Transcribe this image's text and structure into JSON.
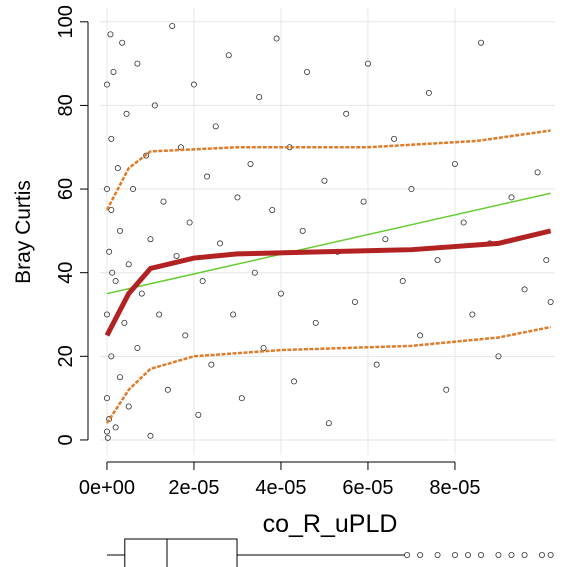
{
  "chart_data": {
    "type": "scatter",
    "xlabel": "co_R_uPLD",
    "ylabel": "Bray Curtis",
    "xlim": [
      -1.6e-06,
      0.000103
    ],
    "ylim": [
      -3.6,
      103.3
    ],
    "xticks": [
      {
        "value": 0,
        "label": "0e+00"
      },
      {
        "value": 2e-05,
        "label": "2e-05"
      },
      {
        "value": 4e-05,
        "label": "4e-05"
      },
      {
        "value": 6e-05,
        "label": "6e-05"
      },
      {
        "value": 8e-05,
        "label": "8e-05"
      }
    ],
    "yticks": [
      0,
      20,
      40,
      60,
      80,
      100
    ],
    "grid": true,
    "color": "#333333",
    "x": [
      0,
      0,
      0,
      0,
      0,
      5e-07,
      5e-07,
      1e-06,
      1e-06,
      1e-06,
      1.5e-06,
      2e-06,
      2e-06,
      2.5e-06,
      3e-06,
      3e-06,
      3.5e-06,
      4e-06,
      4.5e-06,
      5e-06,
      5e-06,
      6e-06,
      7e-06,
      7e-06,
      8e-06,
      9e-06,
      1e-05,
      1e-05,
      1.1e-05,
      1.2e-05,
      1.3e-05,
      1.4e-05,
      1.5e-05,
      1.6e-05,
      1.7e-05,
      1.8e-05,
      1.9e-05,
      2e-05,
      2.1e-05,
      2.2e-05,
      2.3e-05,
      2.4e-05,
      2.5e-05,
      2.6e-05,
      2.8e-05,
      2.9e-05,
      3e-05,
      3.1e-05,
      3.3e-05,
      3.4e-05,
      3.5e-05,
      3.6e-05,
      3.8e-05,
      3.9e-05,
      4e-05,
      4.2e-05,
      4.3e-05,
      4.5e-05,
      4.6e-05,
      4.8e-05,
      5e-05,
      5.1e-05,
      5.3e-05,
      5.5e-05,
      5.7e-05,
      5.9e-05,
      6e-05,
      6.2e-05,
      6.4e-05,
      6.6e-05,
      6.8e-05,
      7e-05,
      7.2e-05,
      7.4e-05,
      7.6e-05,
      7.8e-05,
      8e-05,
      8.2e-05,
      8.4e-05,
      8.6e-05,
      8.8e-05,
      9e-05,
      9.3e-05,
      9.6e-05,
      9.9e-05,
      0.000101,
      0.000102,
      2e-07,
      8e-07,
      1.2e-06
    ],
    "values": [
      2,
      10,
      30,
      60,
      85,
      5,
      45,
      72,
      20,
      55,
      88,
      3,
      38,
      65,
      15,
      50,
      95,
      28,
      78,
      8,
      42,
      60,
      22,
      90,
      35,
      68,
      1,
      48,
      80,
      30,
      57,
      12,
      99,
      44,
      70,
      25,
      52,
      85,
      6,
      38,
      63,
      18,
      75,
      47,
      92,
      30,
      58,
      10,
      66,
      40,
      82,
      22,
      55,
      96,
      35,
      70,
      14,
      50,
      88,
      28,
      62,
      4,
      45,
      78,
      33,
      57,
      90,
      18,
      48,
      72,
      38,
      60,
      25,
      83,
      43,
      12,
      66,
      52,
      30,
      95,
      47,
      20,
      58,
      36,
      64,
      43,
      33,
      0.5,
      97,
      40
    ],
    "lines": [
      {
        "color": "#e07b2a",
        "x": [
          0,
          5e-06,
          1e-05,
          3e-05,
          6e-05,
          8.5e-05,
          0.000102
        ],
        "values": [
          55,
          65,
          69,
          70,
          70,
          71.5,
          74
        ]
      },
      {
        "color": "#e07b2a",
        "x": [
          0,
          5e-06,
          1e-05,
          2e-05,
          4e-05,
          7e-05,
          9e-05,
          0.000102
        ],
        "values": [
          4,
          12,
          17,
          20,
          21.5,
          22.5,
          24.5,
          27
        ]
      },
      {
        "color": "#66cc33",
        "x": [
          0,
          0.000102
        ],
        "values": [
          35,
          59
        ]
      },
      {
        "color": "#b22222",
        "x": [
          0,
          5e-06,
          1e-05,
          2e-05,
          3e-05,
          5e-05,
          7e-05,
          9e-05,
          0.000102
        ],
        "values": [
          25,
          35,
          41,
          43.5,
          44.5,
          45,
          45.5,
          47,
          50
        ]
      }
    ],
    "boxplot": {
      "whisker_low": 0,
      "q1": 4.1e-06,
      "median": 1.38e-05,
      "q3": 2.99e-05,
      "whisker_high": 6.85e-05,
      "outliers": [
        6.9e-05,
        7.2e-05,
        7.6e-05,
        8e-05,
        8.3e-05,
        8.6e-05,
        9e-05,
        9.3e-05,
        9.6e-05,
        0.0001,
        0.000102
      ]
    }
  }
}
